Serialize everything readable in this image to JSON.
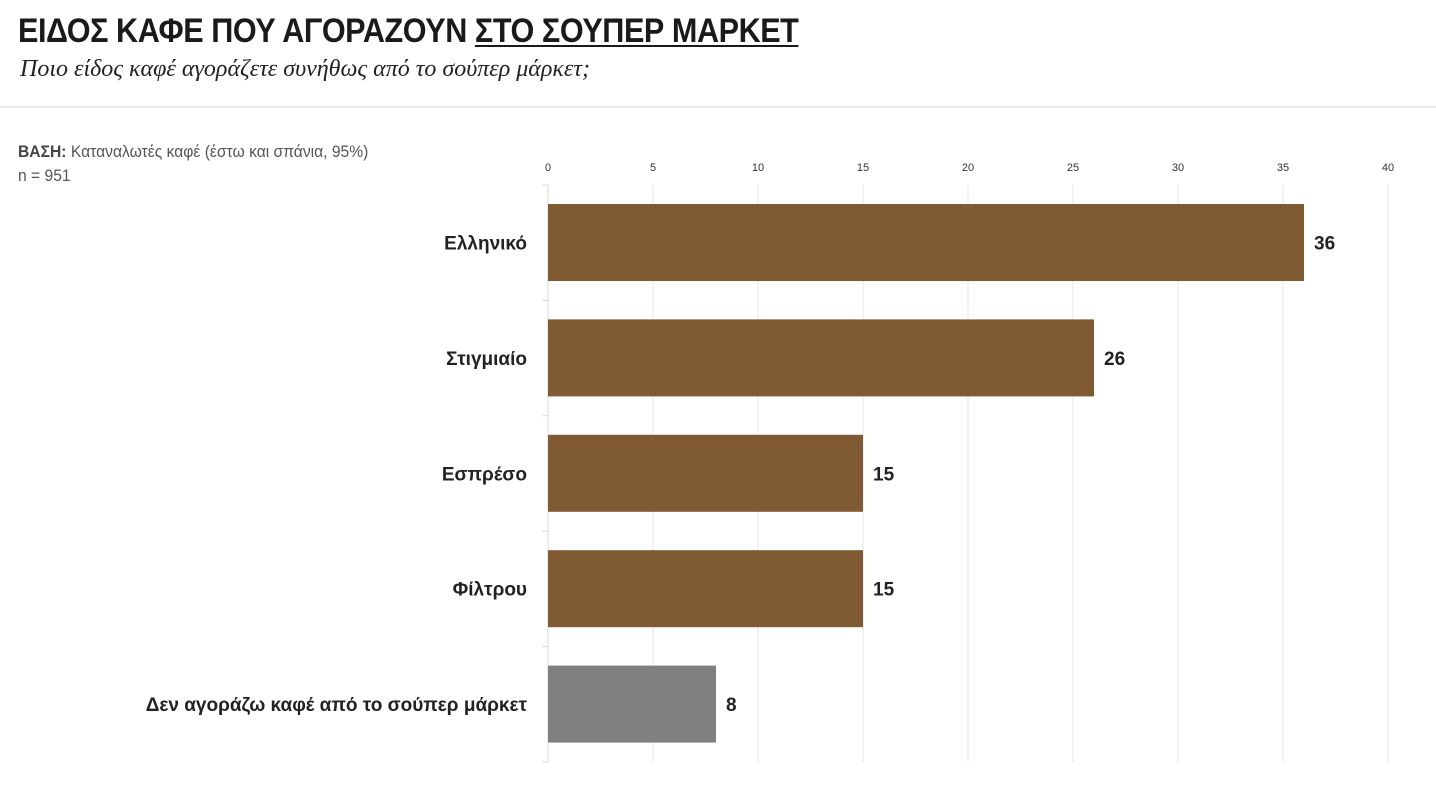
{
  "header": {
    "title_part1": "ΕΙΔΟΣ ΚΑΦΕ ΠΟΥ ΑΓΟΡΑΖΟΥΝ",
    "title_part2": "ΣΤΟ ΣΟΥΠΕΡ ΜΑΡΚΕΤ",
    "subtitle": "Ποιο είδος καφέ αγοράζετε συνήθως από το σούπερ μάρκετ;"
  },
  "base": {
    "label": "ΒΑΣΗ:",
    "text": "Καταναλωτές καφέ (έστω και σπάνια, 95%)",
    "n": "n = 951"
  },
  "chart_data": {
    "type": "bar",
    "orientation": "horizontal",
    "categories": [
      "Ελληνικό",
      "Στιγμιαίο",
      "Εσπρέσο",
      "Φίλτρου",
      "Δεν αγοράζω καφέ από το σούπερ μάρκετ"
    ],
    "values": [
      36,
      26,
      15,
      15,
      8
    ],
    "data_labels": [
      "36",
      "26",
      "15",
      "15",
      "8"
    ],
    "xlim": [
      0,
      40
    ],
    "x_ticks": [
      "0",
      "5",
      "10",
      "15",
      "20",
      "25",
      "30",
      "35",
      "40"
    ],
    "x_axis_position": "top",
    "grid": true,
    "colors": {
      "main": "#7f5a33",
      "none_option": "#808080",
      "grid": "#e4e4e4"
    },
    "bar_colors": [
      "#7f5a33",
      "#7f5a33",
      "#7f5a33",
      "#7f5a33",
      "#808080"
    ]
  }
}
